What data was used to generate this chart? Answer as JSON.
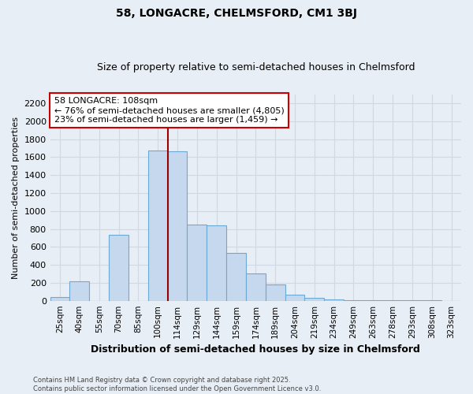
{
  "title": "58, LONGACRE, CHELMSFORD, CM1 3BJ",
  "subtitle": "Size of property relative to semi-detached houses in Chelmsford",
  "xlabel": "Distribution of semi-detached houses by size in Chelmsford",
  "ylabel": "Number of semi-detached properties",
  "categories": [
    "25sqm",
    "40sqm",
    "55sqm",
    "70sqm",
    "85sqm",
    "100sqm",
    "114sqm",
    "129sqm",
    "144sqm",
    "159sqm",
    "174sqm",
    "189sqm",
    "204sqm",
    "219sqm",
    "234sqm",
    "249sqm",
    "263sqm",
    "278sqm",
    "293sqm",
    "308sqm",
    "323sqm"
  ],
  "values": [
    45,
    220,
    0,
    730,
    0,
    1670,
    1660,
    850,
    840,
    530,
    300,
    185,
    65,
    35,
    15,
    10,
    5,
    5,
    3,
    2,
    1
  ],
  "bar_color": "#c5d8ed",
  "bar_edgecolor": "#6aaad4",
  "vline_x": 5.5,
  "vline_color": "#990000",
  "annotation_line1": "58 LONGACRE: 108sqm",
  "annotation_line2": "← 76% of semi-detached houses are smaller (4,805)",
  "annotation_line3": "23% of semi-detached houses are larger (1,459) →",
  "annotation_box_color": "#ffffff",
  "annotation_box_edgecolor": "#cc0000",
  "ylim": [
    0,
    2300
  ],
  "yticks": [
    0,
    200,
    400,
    600,
    800,
    1000,
    1200,
    1400,
    1600,
    1800,
    2000,
    2200
  ],
  "footer": "Contains HM Land Registry data © Crown copyright and database right 2025.\nContains public sector information licensed under the Open Government Licence v3.0.",
  "bg_color": "#e8eef5",
  "plot_bg_color": "#e8eef5",
  "grid_color": "#d0d8e4",
  "title_fontsize": 10,
  "subtitle_fontsize": 9,
  "ylabel_fontsize": 8,
  "xlabel_fontsize": 9
}
